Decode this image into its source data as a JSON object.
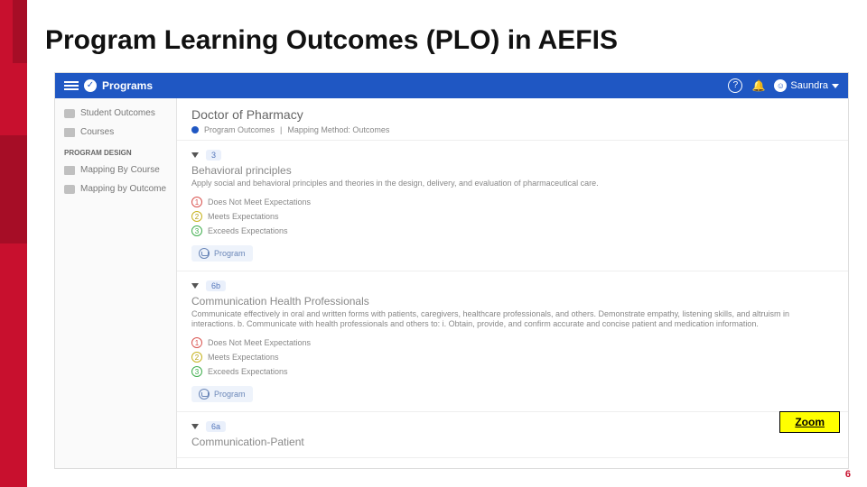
{
  "slide": {
    "title": "Program Learning Outcomes (PLO) in AEFIS",
    "page_number": "6"
  },
  "topbar": {
    "brand": "Programs",
    "help": "?",
    "user_name": "Saundra"
  },
  "sidebar": {
    "items": [
      {
        "label": "Student Outcomes"
      },
      {
        "label": "Courses"
      }
    ],
    "heading": "PROGRAM DESIGN",
    "design_items": [
      {
        "label": "Mapping By Course"
      },
      {
        "label": "Mapping by Outcome"
      }
    ]
  },
  "main": {
    "program_title": "Doctor of Pharmacy",
    "subline_a": "Program Outcomes",
    "subline_b": "Mapping Method: Outcomes",
    "outcomes": [
      {
        "num": "3",
        "name": "Behavioral principles",
        "desc": "Apply social and behavioral principles and theories in the design, delivery, and evaluation of pharmaceutical care.",
        "r1": "Does Not Meet Expectations",
        "r2": "Meets Expectations",
        "r3": "Exceeds Expectations",
        "chip": "Program"
      },
      {
        "num": "6b",
        "name": "Communication Health Professionals",
        "desc": "Communicate effectively in oral and written forms with patients, caregivers, healthcare professionals, and others. Demonstrate empathy, listening skills, and altruism in interactions. b. Communicate with health professionals and others to: i. Obtain, provide, and confirm accurate and concise patient and medication information.",
        "r1": "Does Not Meet Expectations",
        "r2": "Meets Expectations",
        "r3": "Exceeds Expectations",
        "chip": "Program"
      },
      {
        "num": "6a",
        "name": "Communication-Patient",
        "desc": "",
        "r1": "",
        "r2": "",
        "r3": "",
        "chip": ""
      }
    ]
  },
  "zoom_label": "Zoom"
}
